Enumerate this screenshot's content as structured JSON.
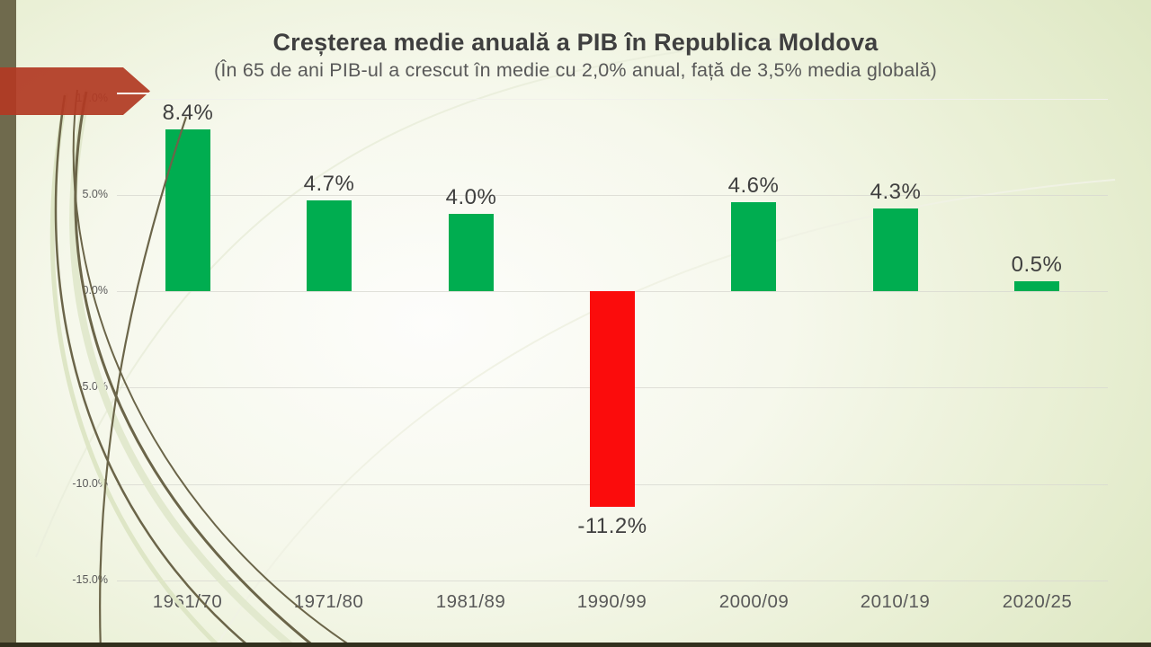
{
  "slide": {
    "title": "Creșterea medie anuală a PIB în Republica Moldova",
    "subtitle": "(În 65 de ani PIB-ul a crescut în medie cu 2,0% anual, față de 3,5% media globală)"
  },
  "chart_data": {
    "type": "bar",
    "title": "Creșterea medie anuală a PIB în Republica Moldova",
    "subtitle": "(În 65 de ani PIB-ul a crescut în medie cu 2,0% anual, față de 3,5% media globală)",
    "categories": [
      "1961/70",
      "1971/80",
      "1981/89",
      "1990/99",
      "2000/09",
      "2010/19",
      "2020/25"
    ],
    "values": [
      8.4,
      4.7,
      4.0,
      -11.2,
      4.6,
      4.3,
      0.5
    ],
    "bar_labels": [
      "8.4%",
      "4.7%",
      "4.0%",
      "-11.2%",
      "4.6%",
      "4.3%",
      "0.5%"
    ],
    "yticks": [
      10,
      5,
      0,
      -5,
      -10,
      -15
    ],
    "ytick_labels": [
      "10.0%",
      "5.0%",
      "0.0%",
      "-5.0%",
      "-10.0%",
      "-15.0%"
    ],
    "ylim": [
      -15,
      10
    ],
    "grid": true,
    "legend": false,
    "positive_color": "#00AD50",
    "negative_color": "#FB0C0C"
  },
  "colors": {
    "arrow_accent": "#B13A23",
    "left_edge_bar": "#6F6A4D",
    "bottom_edge_bar": "#32301D",
    "gridline": "#D8D8D1",
    "gridline_top": "#F1F1EB",
    "title_text": "#3F3F3F",
    "secondary_text": "#595959"
  }
}
